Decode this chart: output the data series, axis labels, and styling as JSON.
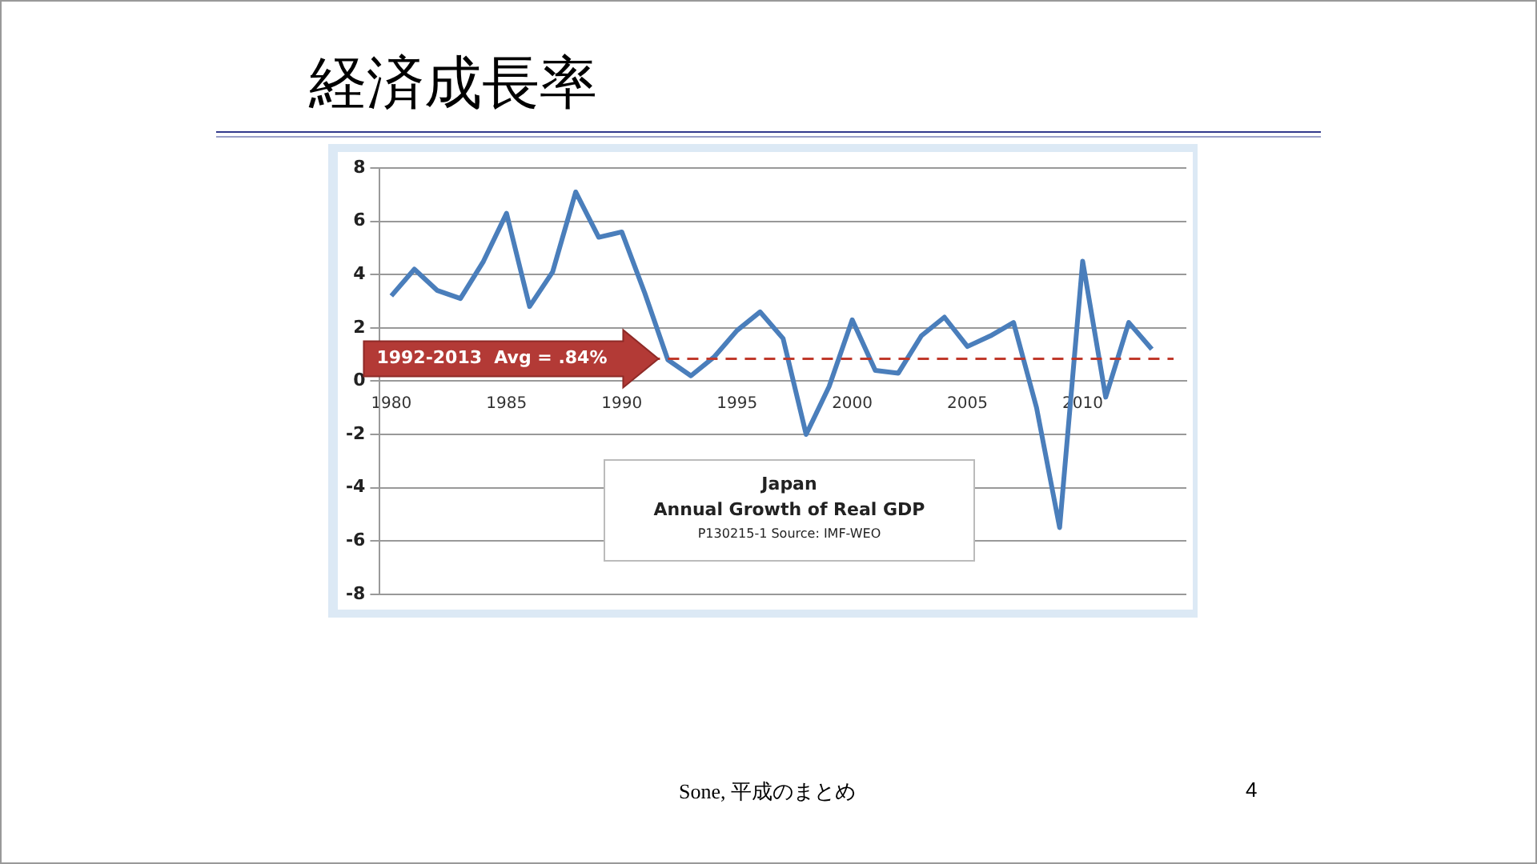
{
  "chart_data": {
    "type": "line",
    "title": "経済成長率",
    "x": [
      1980,
      1981,
      1982,
      1983,
      1984,
      1985,
      1986,
      1987,
      1988,
      1989,
      1990,
      1991,
      1992,
      1993,
      1994,
      1995,
      1996,
      1997,
      1998,
      1999,
      2000,
      2001,
      2002,
      2003,
      2004,
      2005,
      2006,
      2007,
      2008,
      2009,
      2010,
      2011,
      2012,
      2013
    ],
    "series": [
      {
        "color": "#4a7ebb",
        "values": [
          3.2,
          4.2,
          3.4,
          3.1,
          4.5,
          6.3,
          2.8,
          4.1,
          7.1,
          5.4,
          5.6,
          3.3,
          0.8,
          0.2,
          0.9,
          1.9,
          2.6,
          1.6,
          -2.0,
          -0.2,
          2.3,
          0.4,
          0.3,
          1.7,
          2.4,
          1.3,
          1.7,
          2.2,
          -1.0,
          -5.5,
          4.5,
          -0.6,
          2.2,
          1.2
        ]
      }
    ],
    "xlim": [
      1979.5,
      2014.5
    ],
    "xticks": [
      1980,
      1985,
      1990,
      1995,
      2000,
      2005,
      2010
    ],
    "ylim": [
      -8,
      8
    ],
    "yticks": [
      -8,
      -6,
      -4,
      -2,
      0,
      2,
      4,
      6,
      8
    ],
    "ref_lines": [
      {
        "axis": "y",
        "value": 0.84,
        "label": "1992-2013  Avg = .84%",
        "color": "#c0392b",
        "line_style": "dashed"
      }
    ],
    "annotations": [
      "Japan",
      "Annual Growth of Real GDP",
      "P130215-1 Source: IMF-WEO",
      "Sone, 平成のまとめ",
      "4"
    ],
    "grid": "y",
    "legend": false,
    "marker": "none",
    "line_style": "solid"
  }
}
